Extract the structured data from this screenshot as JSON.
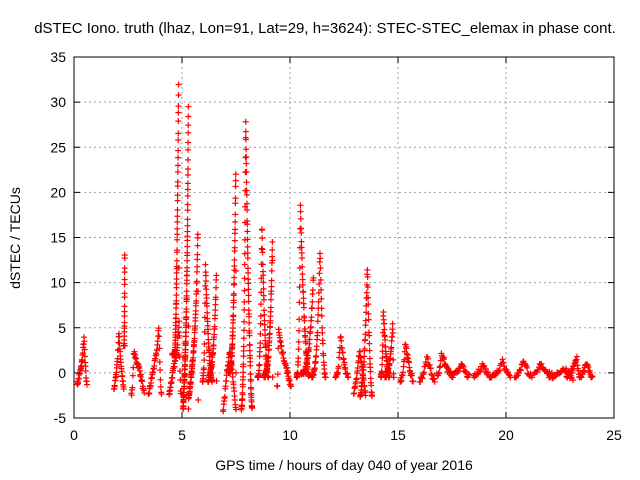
{
  "chart_data": {
    "type": "scatter",
    "title": "dSTEC Iono. truth (lhaz, Lon=91, Lat=29, h=3624): STEC-STEC_elemax in phase cont.",
    "xlabel": "GPS time / hours of day 040 of year 2016",
    "ylabel": "dSTEC  / TECUs",
    "xlim": [
      0,
      25
    ],
    "ylim": [
      -5,
      35
    ],
    "xticks": [
      0,
      5,
      10,
      15,
      20,
      25
    ],
    "yticks": [
      -5,
      0,
      5,
      10,
      15,
      20,
      25,
      30,
      35
    ],
    "xtick_labels": [
      "0",
      "5",
      "10",
      "15",
      "20",
      "25"
    ],
    "ytick_labels": [
      "-5",
      "0",
      "5",
      "10",
      "15",
      "20",
      "25",
      "30",
      "35"
    ],
    "grid": true,
    "marker": "plus",
    "color": "#ff0000",
    "arcs": [
      {
        "t0": 0.15,
        "t1": 0.6,
        "min": -1.3,
        "max": 4.0,
        "peak": 0.7
      },
      {
        "t0": 1.85,
        "t1": 2.3,
        "min": -1.8,
        "max": 4.5,
        "peak": 0.5
      },
      {
        "t0": 2.3,
        "t1": 2.35,
        "min": 3.0,
        "max": 13.3,
        "peak": 0.98
      },
      {
        "t0": 2.65,
        "t1": 3.25,
        "min": -2.5,
        "max": 2.5,
        "peak": 0.2
      },
      {
        "t0": 3.45,
        "t1": 4.05,
        "min": -2.5,
        "max": 5.2,
        "peak": 0.8
      },
      {
        "t0": 4.4,
        "t1": 4.95,
        "min": -2.4,
        "max": 6.0,
        "peak": 0.85
      },
      {
        "t0": 4.55,
        "t1": 4.85,
        "min": 2.0,
        "max": 32.0,
        "peak": 0.98
      },
      {
        "t0": 5.05,
        "t1": 5.3,
        "min": -4.0,
        "max": 29.5,
        "peak": 0.98
      },
      {
        "t0": 5.3,
        "t1": 5.75,
        "min": -3.0,
        "max": 16.3,
        "peak": 0.98
      },
      {
        "t0": 5.95,
        "t1": 6.4,
        "min": -1.0,
        "max": 12.0,
        "peak": 0.3
      },
      {
        "t0": 6.2,
        "t1": 6.6,
        "min": -1.0,
        "max": 10.8,
        "peak": 0.98
      },
      {
        "t0": 6.9,
        "t1": 7.5,
        "min": -4.3,
        "max": 2.5,
        "peak": 0.5
      },
      {
        "t0": 7.15,
        "t1": 7.5,
        "min": 0.0,
        "max": 22.8,
        "peak": 0.98
      },
      {
        "t0": 7.75,
        "t1": 8.25,
        "min": -4.1,
        "max": 28.0,
        "peak": 0.4
      },
      {
        "t0": 8.5,
        "t1": 9.0,
        "min": -0.5,
        "max": 16.5,
        "peak": 0.4
      },
      {
        "t0": 8.8,
        "t1": 9.2,
        "min": -0.5,
        "max": 15.0,
        "peak": 0.98
      },
      {
        "t0": 9.4,
        "t1": 10.05,
        "min": -1.5,
        "max": 5.0,
        "peak": 0.1
      },
      {
        "t0": 10.3,
        "t1": 10.9,
        "min": -0.5,
        "max": 18.8,
        "peak": 0.3
      },
      {
        "t0": 10.5,
        "t1": 11.1,
        "min": -0.2,
        "max": 10.8,
        "peak": 0.98
      },
      {
        "t0": 11.0,
        "t1": 11.65,
        "min": -0.5,
        "max": 13.6,
        "peak": 0.6
      },
      {
        "t0": 12.1,
        "t1": 12.7,
        "min": -0.5,
        "max": 4.0,
        "peak": 0.4
      },
      {
        "t0": 12.95,
        "t1": 13.5,
        "min": -2.5,
        "max": 2.5,
        "peak": 0.5
      },
      {
        "t0": 13.25,
        "t1": 13.8,
        "min": -2.7,
        "max": 11.8,
        "peak": 0.6
      },
      {
        "t0": 14.2,
        "t1": 14.6,
        "min": -0.5,
        "max": 7.0,
        "peak": 0.3
      },
      {
        "t0": 14.4,
        "t1": 14.8,
        "min": -0.5,
        "max": 5.5,
        "peak": 0.9
      },
      {
        "t0": 15.1,
        "t1": 15.7,
        "min": -1.0,
        "max": 3.5,
        "peak": 0.4
      },
      {
        "t0": 16.0,
        "t1": 16.7,
        "min": -1.0,
        "max": 1.8,
        "peak": 0.5
      },
      {
        "t0": 16.8,
        "t1": 17.5,
        "min": -0.3,
        "max": 2.3,
        "peak": 0.3
      },
      {
        "t0": 17.5,
        "t1": 18.3,
        "min": -0.5,
        "max": 1.0,
        "peak": 0.5
      },
      {
        "t0": 18.5,
        "t1": 19.3,
        "min": -0.5,
        "max": 1.0,
        "peak": 0.5
      },
      {
        "t0": 19.3,
        "t1": 20.2,
        "min": -0.5,
        "max": 1.5,
        "peak": 0.6
      },
      {
        "t0": 20.4,
        "t1": 21.2,
        "min": -0.5,
        "max": 1.5,
        "peak": 0.5
      },
      {
        "t0": 21.3,
        "t1": 22.2,
        "min": -0.3,
        "max": 1.0,
        "peak": 0.3
      },
      {
        "t0": 22.0,
        "t1": 23.1,
        "min": -0.8,
        "max": 0.5,
        "peak": 0.7
      },
      {
        "t0": 22.8,
        "t1": 23.4,
        "min": -0.5,
        "max": 1.8,
        "peak": 0.8
      },
      {
        "t0": 23.4,
        "t1": 24.0,
        "min": -0.5,
        "max": 1.2,
        "peak": 0.5
      }
    ]
  }
}
